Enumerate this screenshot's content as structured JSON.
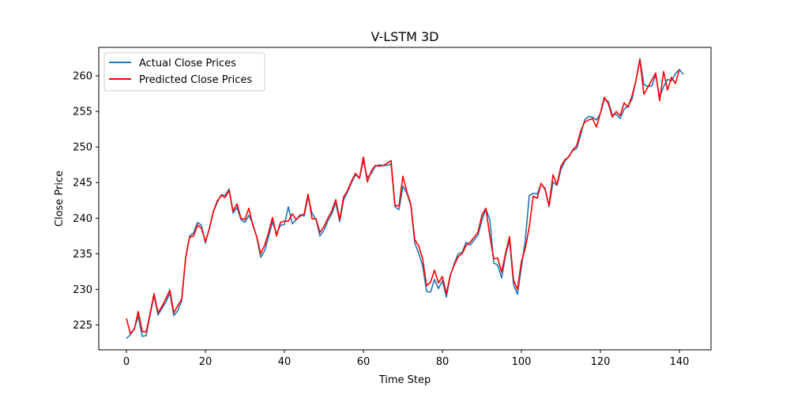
{
  "chart_data": {
    "type": "line",
    "title": "V-LSTM 3D",
    "xlabel": "Time Step",
    "ylabel": "Close Price",
    "xlim": [
      -7,
      148
    ],
    "ylim": [
      221.5,
      264.0
    ],
    "x_ticks": [
      0,
      20,
      40,
      60,
      80,
      100,
      120,
      140
    ],
    "y_ticks": [
      225,
      230,
      235,
      240,
      245,
      250,
      255,
      260
    ],
    "grid": false,
    "legend_position": "top-left",
    "series": [
      {
        "name": "Actual Close Prices",
        "color": "#1f77b4",
        "values": [
          223.1,
          223.6,
          224.5,
          226.2,
          223.4,
          223.5,
          226.4,
          229.1,
          226.4,
          227.3,
          228.2,
          229.5,
          226.3,
          227.0,
          228.4,
          234.5,
          237.5,
          237.9,
          239.4,
          239.0,
          236.5,
          238.6,
          240.9,
          242.2,
          243.3,
          243.2,
          244.1,
          240.7,
          241.5,
          239.8,
          239.4,
          240.4,
          239.2,
          237.3,
          234.5,
          235.4,
          237.4,
          239.5,
          237.8,
          239.0,
          239.1,
          241.6,
          239.2,
          239.8,
          240.5,
          240.3,
          243.0,
          240.7,
          239.8,
          237.5,
          238.3,
          239.6,
          240.6,
          242.2,
          239.5,
          242.6,
          243.7,
          245.0,
          246.1,
          245.6,
          248.1,
          245.7,
          246.3,
          247.3,
          247.5,
          247.4,
          247.4,
          247.6,
          241.6,
          241.2,
          244.5,
          243.5,
          241.8,
          236.5,
          235.1,
          233.3,
          229.7,
          229.6,
          231.4,
          230.1,
          231.2,
          228.9,
          231.9,
          233.6,
          235.0,
          235.2,
          236.6,
          236.2,
          236.9,
          237.6,
          239.7,
          241.3,
          239.8,
          233.7,
          233.4,
          231.6,
          234.8,
          236.9,
          230.7,
          229.3,
          233.1,
          237.0,
          243.2,
          243.5,
          243.4,
          244.8,
          244.2,
          241.6,
          245.1,
          244.6,
          246.8,
          248.0,
          248.7,
          249.5,
          249.8,
          251.7,
          253.8,
          254.3,
          254.2,
          253.8,
          254.7,
          256.7,
          256.4,
          254.5,
          254.6,
          254.0,
          255.3,
          255.8,
          256.7,
          259.4,
          262.4,
          258.8,
          258.5,
          258.6,
          260.1,
          257.0,
          258.5,
          259.5,
          259.3,
          260.3,
          260.9,
          260.2
        ]
      },
      {
        "name": "Predicted Close Prices",
        "color": "#ff0000",
        "values": [
          225.9,
          223.8,
          224.4,
          226.9,
          224.1,
          224.0,
          226.6,
          229.4,
          226.7,
          227.6,
          228.7,
          229.9,
          226.7,
          227.7,
          228.6,
          234.4,
          237.3,
          237.5,
          239.0,
          238.6,
          236.7,
          238.5,
          240.9,
          242.4,
          243.2,
          242.9,
          243.9,
          241.0,
          242.0,
          240.0,
          239.8,
          241.4,
          239.0,
          237.4,
          235.0,
          236.2,
          238.0,
          240.1,
          237.5,
          239.4,
          239.6,
          239.6,
          240.6,
          239.8,
          240.3,
          240.6,
          243.4,
          239.9,
          239.9,
          238.0,
          238.8,
          240.0,
          241.0,
          242.6,
          239.8,
          243.0,
          243.9,
          245.2,
          246.3,
          245.6,
          248.6,
          245.1,
          246.6,
          247.4,
          247.3,
          247.4,
          247.7,
          248.1,
          241.8,
          241.7,
          245.9,
          243.7,
          242.0,
          237.0,
          236.1,
          234.3,
          230.5,
          231.0,
          232.7,
          230.9,
          231.8,
          229.4,
          232.0,
          233.4,
          234.6,
          235.0,
          236.2,
          236.6,
          237.3,
          238.0,
          240.4,
          241.4,
          237.5,
          234.3,
          234.4,
          232.4,
          235.1,
          237.4,
          231.3,
          230.0,
          233.9,
          235.8,
          238.8,
          243.1,
          242.8,
          244.9,
          244.0,
          241.8,
          246.1,
          244.7,
          247.3,
          248.2,
          248.6,
          249.6,
          250.2,
          252.2,
          253.5,
          253.8,
          254.0,
          252.8,
          254.8,
          257.0,
          256.1,
          254.2,
          255.0,
          254.4,
          256.2,
          255.6,
          257.2,
          259.3,
          262.3,
          257.4,
          258.4,
          259.4,
          260.4,
          256.5,
          260.6,
          258.0,
          259.8,
          258.9,
          260.9
        ]
      }
    ]
  }
}
